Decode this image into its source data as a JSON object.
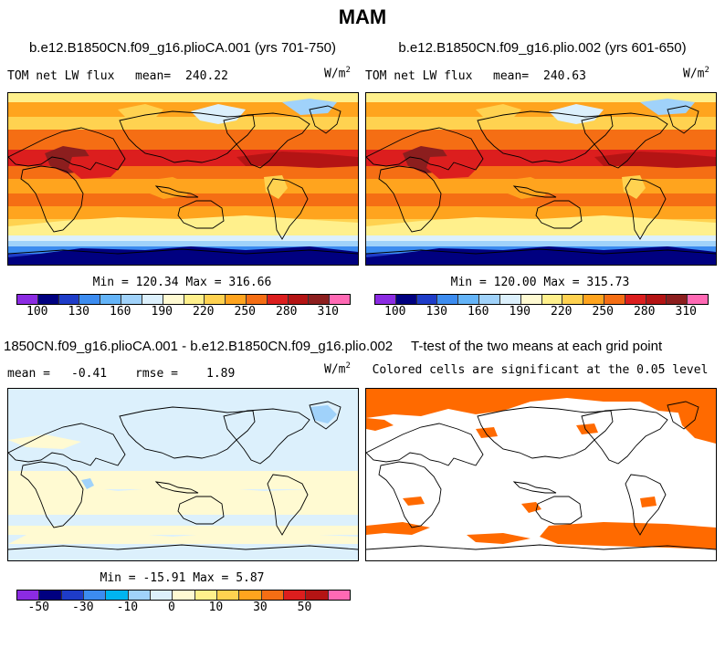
{
  "chart_data": [
    {
      "type": "heatmap",
      "panel": "top-left",
      "title": "b.e12.B1850CN.f09_g16.plioCA.001 (yrs 701-750)",
      "variable": "TOM net LW flux",
      "mean_label": "mean=",
      "mean": "240.22",
      "units": "W/m",
      "units_exp": "2",
      "stats": "Min = 120.34 Max = 316.66",
      "colorbar_ticks": [
        "100",
        "130",
        "160",
        "190",
        "220",
        "250",
        "280",
        "310"
      ]
    },
    {
      "type": "heatmap",
      "panel": "top-right",
      "title": "b.e12.B1850CN.f09_g16.plio.002 (yrs 601-650)",
      "variable": "TOM net LW flux",
      "mean_label": "mean=",
      "mean": "240.63",
      "units": "W/m",
      "units_exp": "2",
      "stats": "Min = 120.00 Max = 315.73",
      "colorbar_ticks": [
        "100",
        "130",
        "160",
        "190",
        "220",
        "250",
        "280",
        "310"
      ]
    },
    {
      "type": "heatmap",
      "panel": "bottom-left",
      "title": "1850CN.f09_g16.plioCA.001 - b.e12.B1850CN.f09_g16.plio.002",
      "mean_label": "mean =",
      "mean": "-0.41",
      "rmse_label": "rmse =",
      "rmse": "1.89",
      "units": "W/m",
      "units_exp": "2",
      "stats": "Min = -15.91 Max =  5.87",
      "colorbar_ticks": [
        "-50",
        "-30",
        "-10",
        "0",
        "10",
        "30",
        "50"
      ]
    },
    {
      "type": "heatmap",
      "panel": "bottom-right",
      "title": "T-test of the two means at each grid point",
      "subtitle": "Colored cells are significant at the 0.05 level",
      "significance_level": 0.05
    }
  ],
  "page": {
    "title": "MAM"
  },
  "colors": {
    "abs_scale": [
      "#8b2be2",
      "#000080",
      "#1e3cc8",
      "#3c8cf0",
      "#64b4f8",
      "#a0d2fa",
      "#dcf0fc",
      "#fffad2",
      "#fff08c",
      "#ffd250",
      "#ffa41e",
      "#f56e14",
      "#dc1e1e",
      "#b41414",
      "#8c1e1e",
      "#ff69b4"
    ],
    "diff_scale": [
      "#8b2be2",
      "#000080",
      "#1e3cc8",
      "#3c8cf0",
      "#00b4f0",
      "#a0d2fa",
      "#dcf0fc",
      "#fffad2",
      "#fff08c",
      "#ffd250",
      "#ffa41e",
      "#f56e14",
      "#dc1e1e",
      "#b41414",
      "#ff69b4"
    ],
    "significant": "#ff6a00"
  }
}
